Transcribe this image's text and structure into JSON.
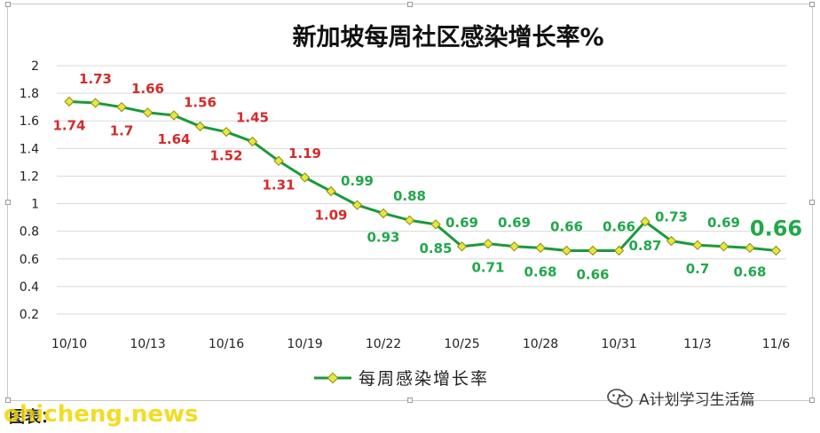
{
  "chart_data": {
    "type": "line",
    "title": "新加坡每周社区感染增长率%",
    "x_tick_labels": [
      "10/10",
      "10/13",
      "10/16",
      "10/19",
      "10/22",
      "10/25",
      "10/28",
      "10/31",
      "11/3",
      "11/6"
    ],
    "x": [
      "10/10",
      "10/11",
      "10/12",
      "10/13",
      "10/14",
      "10/15",
      "10/16",
      "10/17",
      "10/18",
      "10/19",
      "10/20",
      "10/21",
      "10/22",
      "10/23",
      "10/24",
      "10/25",
      "10/26",
      "10/27",
      "10/28",
      "10/29",
      "10/30",
      "10/31",
      "11/1",
      "11/2",
      "11/3",
      "11/4",
      "11/5",
      "11/6"
    ],
    "series": [
      {
        "name": "每周感染增长率",
        "values": [
          1.74,
          1.73,
          1.7,
          1.66,
          1.64,
          1.56,
          1.52,
          1.45,
          1.31,
          1.19,
          1.09,
          0.99,
          0.93,
          0.88,
          0.85,
          0.69,
          0.71,
          0.69,
          0.68,
          0.66,
          0.66,
          0.66,
          0.87,
          0.73,
          0.7,
          0.69,
          0.68,
          0.66
        ]
      }
    ],
    "data_labels": [
      {
        "index": 0,
        "text": "1.74",
        "pos": "below",
        "color": "#d42a2a"
      },
      {
        "index": 1,
        "text": "1.73",
        "pos": "above",
        "color": "#d42a2a"
      },
      {
        "index": 2,
        "text": "1.7",
        "pos": "below",
        "color": "#d42a2a"
      },
      {
        "index": 3,
        "text": "1.66",
        "pos": "above",
        "color": "#d42a2a"
      },
      {
        "index": 4,
        "text": "1.64",
        "pos": "below",
        "color": "#d42a2a"
      },
      {
        "index": 5,
        "text": "1.56",
        "pos": "above",
        "color": "#d42a2a"
      },
      {
        "index": 6,
        "text": "1.52",
        "pos": "below",
        "color": "#d42a2a"
      },
      {
        "index": 7,
        "text": "1.45",
        "pos": "above",
        "color": "#d42a2a"
      },
      {
        "index": 8,
        "text": "1.31",
        "pos": "below",
        "color": "#d42a2a"
      },
      {
        "index": 9,
        "text": "1.19",
        "pos": "above",
        "color": "#d42a2a"
      },
      {
        "index": 10,
        "text": "1.09",
        "pos": "below",
        "color": "#d42a2a"
      },
      {
        "index": 11,
        "text": "0.99",
        "pos": "above",
        "color": "#22a84a"
      },
      {
        "index": 12,
        "text": "0.93",
        "pos": "below",
        "color": "#22a84a"
      },
      {
        "index": 13,
        "text": "0.88",
        "pos": "above",
        "color": "#22a84a"
      },
      {
        "index": 14,
        "text": "0.85",
        "pos": "below",
        "color": "#22a84a"
      },
      {
        "index": 15,
        "text": "0.69",
        "pos": "above",
        "color": "#22a84a"
      },
      {
        "index": 16,
        "text": "0.71",
        "pos": "below",
        "color": "#22a84a"
      },
      {
        "index": 17,
        "text": "0.69",
        "pos": "above",
        "color": "#22a84a"
      },
      {
        "index": 18,
        "text": "0.68",
        "pos": "below",
        "color": "#22a84a"
      },
      {
        "index": 19,
        "text": "0.66",
        "pos": "above",
        "color": "#22a84a"
      },
      {
        "index": 20,
        "text": "0.66",
        "pos": "below",
        "color": "#22a84a"
      },
      {
        "index": 21,
        "text": "0.66",
        "pos": "above",
        "color": "#22a84a"
      },
      {
        "index": 22,
        "text": "0.87",
        "pos": "below",
        "color": "#22a84a"
      },
      {
        "index": 23,
        "text": "0.73",
        "pos": "above",
        "color": "#22a84a"
      },
      {
        "index": 24,
        "text": "0.7",
        "pos": "below",
        "color": "#22a84a"
      },
      {
        "index": 25,
        "text": "0.69",
        "pos": "above",
        "color": "#22a84a"
      },
      {
        "index": 26,
        "text": "0.68",
        "pos": "below",
        "color": "#22a84a"
      },
      {
        "index": 27,
        "text": "0.66",
        "pos": "above",
        "color": "#22a84a",
        "emphasis": true
      }
    ],
    "y_tick_labels": [
      "0.2",
      "0.4",
      "0.6",
      "0.8",
      "1",
      "1.2",
      "1.4",
      "1.6",
      "1.8",
      "2"
    ],
    "ylim": [
      0.2,
      2
    ],
    "grid": "horizontal",
    "legend": {
      "position": "bottom",
      "label": "每周感染增长率"
    },
    "colors": {
      "line": "#1a9a3a",
      "marker_fill": "#e8e83a",
      "marker_stroke": "#8a8a1a"
    },
    "xlabel": "",
    "ylabel": ""
  },
  "footer": {
    "caption": "图表：",
    "watermark": "ohicheng.news",
    "account": "A计划学习生活篇"
  },
  "icons": {
    "account": "wechat-icon"
  }
}
